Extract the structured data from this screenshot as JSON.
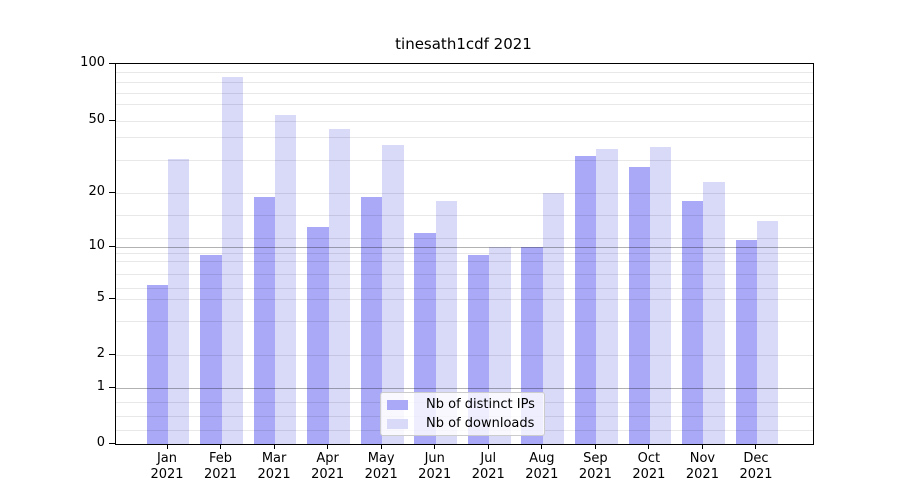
{
  "title": "tinesath1cdf 2021",
  "chart_data": {
    "type": "bar",
    "title": "tinesath1cdf 2021",
    "categories": [
      "Jan 2021",
      "Feb 2021",
      "Mar 2021",
      "Apr 2021",
      "May 2021",
      "Jun 2021",
      "Jul 2021",
      "Aug 2021",
      "Sep 2021",
      "Oct 2021",
      "Nov 2021",
      "Dec 2021"
    ],
    "series": [
      {
        "name": "Nb of distinct IPs",
        "color": "#a9a9f8",
        "values": [
          6,
          9,
          19,
          13,
          19,
          12,
          9,
          10,
          32,
          28,
          18,
          11
        ]
      },
      {
        "name": "Nb of downloads",
        "color": "#d9d9f8",
        "values": [
          31,
          85,
          54,
          45,
          37,
          18,
          10,
          20,
          35,
          36,
          23,
          14
        ]
      }
    ],
    "y_axis": {
      "scale": "symlog",
      "tick_values": [
        0,
        1,
        2,
        5,
        10,
        20,
        50,
        100
      ],
      "range": [
        0,
        100
      ]
    },
    "xlabel": "",
    "ylabel": "",
    "grid": true,
    "legend_position": "inside-lower-center"
  },
  "legend": {
    "items": [
      {
        "label": "Nb of distinct IPs"
      },
      {
        "label": "Nb of downloads"
      }
    ]
  },
  "colors": {
    "distinct_ips_bar": "#a9a9f8",
    "downloads_bar": "#d9d9f8",
    "grid_major": "#b0b0b0",
    "grid_minor": "#e8e8e8",
    "axis": "#000000",
    "text": "#000000"
  }
}
